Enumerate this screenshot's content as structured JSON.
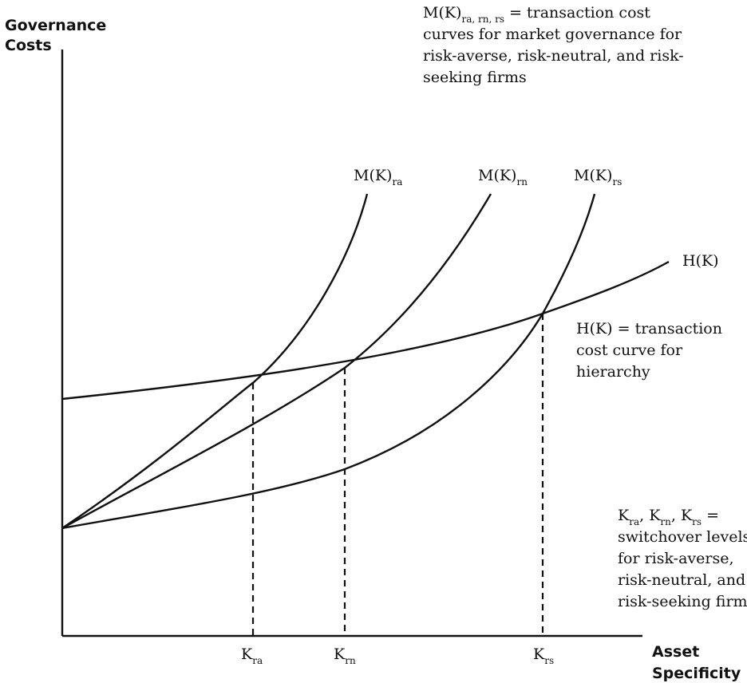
{
  "axes": {
    "y_title": [
      "Governance",
      "Costs"
    ],
    "x_title": [
      "Asset",
      "Specificity"
    ]
  },
  "curves": {
    "m_ra": {
      "base": "M(K)",
      "sub": "ra"
    },
    "m_rn": {
      "base": "M(K)",
      "sub": "rn"
    },
    "m_rs": {
      "base": "M(K)",
      "sub": "rs"
    },
    "h": {
      "label": "H(K)"
    }
  },
  "ticks": {
    "k_ra": {
      "base": "K",
      "sub": "ra"
    },
    "k_rn": {
      "base": "K",
      "sub": "rn"
    },
    "k_rs": {
      "base": "K",
      "sub": "rs"
    }
  },
  "notes": {
    "market": {
      "base": "M(K)",
      "sub": "ra, rn, rs",
      "first_line_rest": " = transaction  cost",
      "lines": [
        "curves  for market governance for",
        "risk-averse, risk-neutral, and risk-",
        "seeking firms"
      ]
    },
    "hierarchy": {
      "lines": [
        "H(K) = transaction",
        "cost curve for",
        "hierarchy"
      ]
    },
    "switchover": {
      "k1": "K",
      "s1": "ra",
      "sep1": ", ",
      "k2": "K",
      "s2": "rn",
      "sep2": ", ",
      "k3": "K",
      "s3": "rs",
      "rest": " =",
      "lines": [
        "switchover levels",
        "for  risk-averse,",
        "risk-neutral, and",
        "risk-seeking firms"
      ]
    }
  }
}
